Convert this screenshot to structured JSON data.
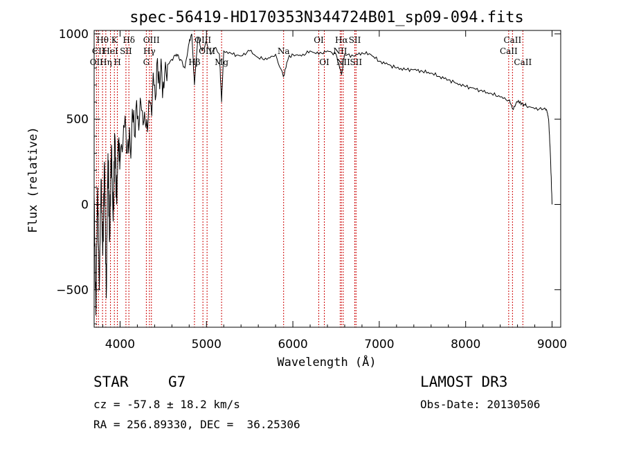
{
  "chart_data": {
    "type": "line",
    "title": "spec-56419-HD170353N344724B01_sp09-094.fits",
    "xlabel": "Wavelength (Å)",
    "ylabel": "Flux (relative)",
    "xlim": [
      3700,
      9100
    ],
    "ylim": [
      -720,
      1020
    ],
    "xticks": [
      4000,
      5000,
      6000,
      7000,
      8000,
      9000
    ],
    "yticks": [
      -500,
      0,
      500,
      1000
    ],
    "series": [
      {
        "name": "flux",
        "x": [
          3700,
          3720,
          3740,
          3760,
          3780,
          3800,
          3820,
          3840,
          3860,
          3880,
          3900,
          3920,
          3940,
          3960,
          3980,
          4000,
          4050,
          4100,
          4150,
          4200,
          4250,
          4300,
          4350,
          4400,
          4450,
          4500,
          4550,
          4600,
          4650,
          4700,
          4750,
          4800,
          4830,
          4861,
          4900,
          4950,
          5000,
          5050,
          5100,
          5150,
          5175,
          5200,
          5300,
          5400,
          5500,
          5600,
          5700,
          5800,
          5890,
          5950,
          6000,
          6100,
          6200,
          6300,
          6400,
          6500,
          6563,
          6600,
          6700,
          6800,
          6900,
          7000,
          7100,
          7200,
          7300,
          7400,
          7500,
          7600,
          7700,
          7800,
          7900,
          8000,
          8100,
          8200,
          8300,
          8400,
          8500,
          8542,
          8600,
          8662,
          8700,
          8800,
          8900,
          8940,
          8960,
          8980,
          9000
        ],
        "y": [
          50,
          -650,
          100,
          -500,
          150,
          -300,
          250,
          -550,
          300,
          -200,
          350,
          -100,
          400,
          0,
          380,
          250,
          450,
          300,
          480,
          500,
          550,
          450,
          600,
          700,
          780,
          720,
          820,
          850,
          880,
          850,
          800,
          950,
          1000,
          700,
          980,
          900,
          950,
          880,
          920,
          880,
          600,
          900,
          880,
          870,
          900,
          860,
          850,
          880,
          750,
          860,
          880,
          870,
          900,
          880,
          900,
          880,
          760,
          880,
          870,
          890,
          880,
          840,
          820,
          800,
          790,
          790,
          780,
          770,
          750,
          730,
          710,
          690,
          680,
          660,
          650,
          630,
          610,
          560,
          600,
          590,
          580,
          560,
          560,
          550,
          500,
          300,
          0
        ]
      }
    ],
    "lines": [
      {
        "name": "Hθ",
        "x": 3797,
        "label_row": 0
      },
      {
        "name": "CII",
        "x": 3750,
        "label_row": 1
      },
      {
        "name": "OII",
        "x": 3727,
        "label_row": 2
      },
      {
        "name": "Hη",
        "x": 3835,
        "label_row": 2
      },
      {
        "name": "HeI",
        "x": 3889,
        "label_row": 1
      },
      {
        "name": "K",
        "x": 3934,
        "label_row": 0
      },
      {
        "name": "H",
        "x": 3969,
        "label_row": 2
      },
      {
        "name": "SII",
        "x": 4068,
        "label_row": 1
      },
      {
        "name": "Hδ",
        "x": 4102,
        "label_row": 0
      },
      {
        "name": "OIII",
        "x": 4363,
        "label_row": 0
      },
      {
        "name": "Hγ",
        "x": 4340,
        "label_row": 1
      },
      {
        "name": "G",
        "x": 4304,
        "label_row": 2
      },
      {
        "name": "Hβ",
        "x": 4861,
        "label_row": 2
      },
      {
        "name": "OIII",
        "x": 4959,
        "label_row": 0
      },
      {
        "name": "OIII",
        "x": 5007,
        "label_row": 1
      },
      {
        "name": "Mg",
        "x": 5175,
        "label_row": 2
      },
      {
        "name": "Na",
        "x": 5893,
        "label_row": 1
      },
      {
        "name": "OI",
        "x": 6300,
        "label_row": 0
      },
      {
        "name": "OI",
        "x": 6364,
        "label_row": 2
      },
      {
        "name": "NII",
        "x": 6548,
        "label_row": 1
      },
      {
        "name": "Hα",
        "x": 6563,
        "label_row": 0
      },
      {
        "name": "NII",
        "x": 6583,
        "label_row": 2
      },
      {
        "name": "SII",
        "x": 6717,
        "label_row": 0
      },
      {
        "name": "SII",
        "x": 6731,
        "label_row": 2
      },
      {
        "name": "CaII",
        "x": 8498,
        "label_row": 1
      },
      {
        "name": "CaII",
        "x": 8542,
        "label_row": 0
      },
      {
        "name": "CaII",
        "x": 8662,
        "label_row": 2
      }
    ],
    "grid": false,
    "legend": "none"
  },
  "info": {
    "object_class": "STAR",
    "subclass": "G7",
    "survey": "LAMOST DR3",
    "redshift": "cz = -57.8 ± 18.2 km/s",
    "obs_date": "Obs-Date: 20130506",
    "coords": "RA = 256.89330, DEC =  36.25306"
  },
  "colors": {
    "spectrum": "#000000",
    "line_marker": "#cc0000",
    "axes": "#000000"
  }
}
